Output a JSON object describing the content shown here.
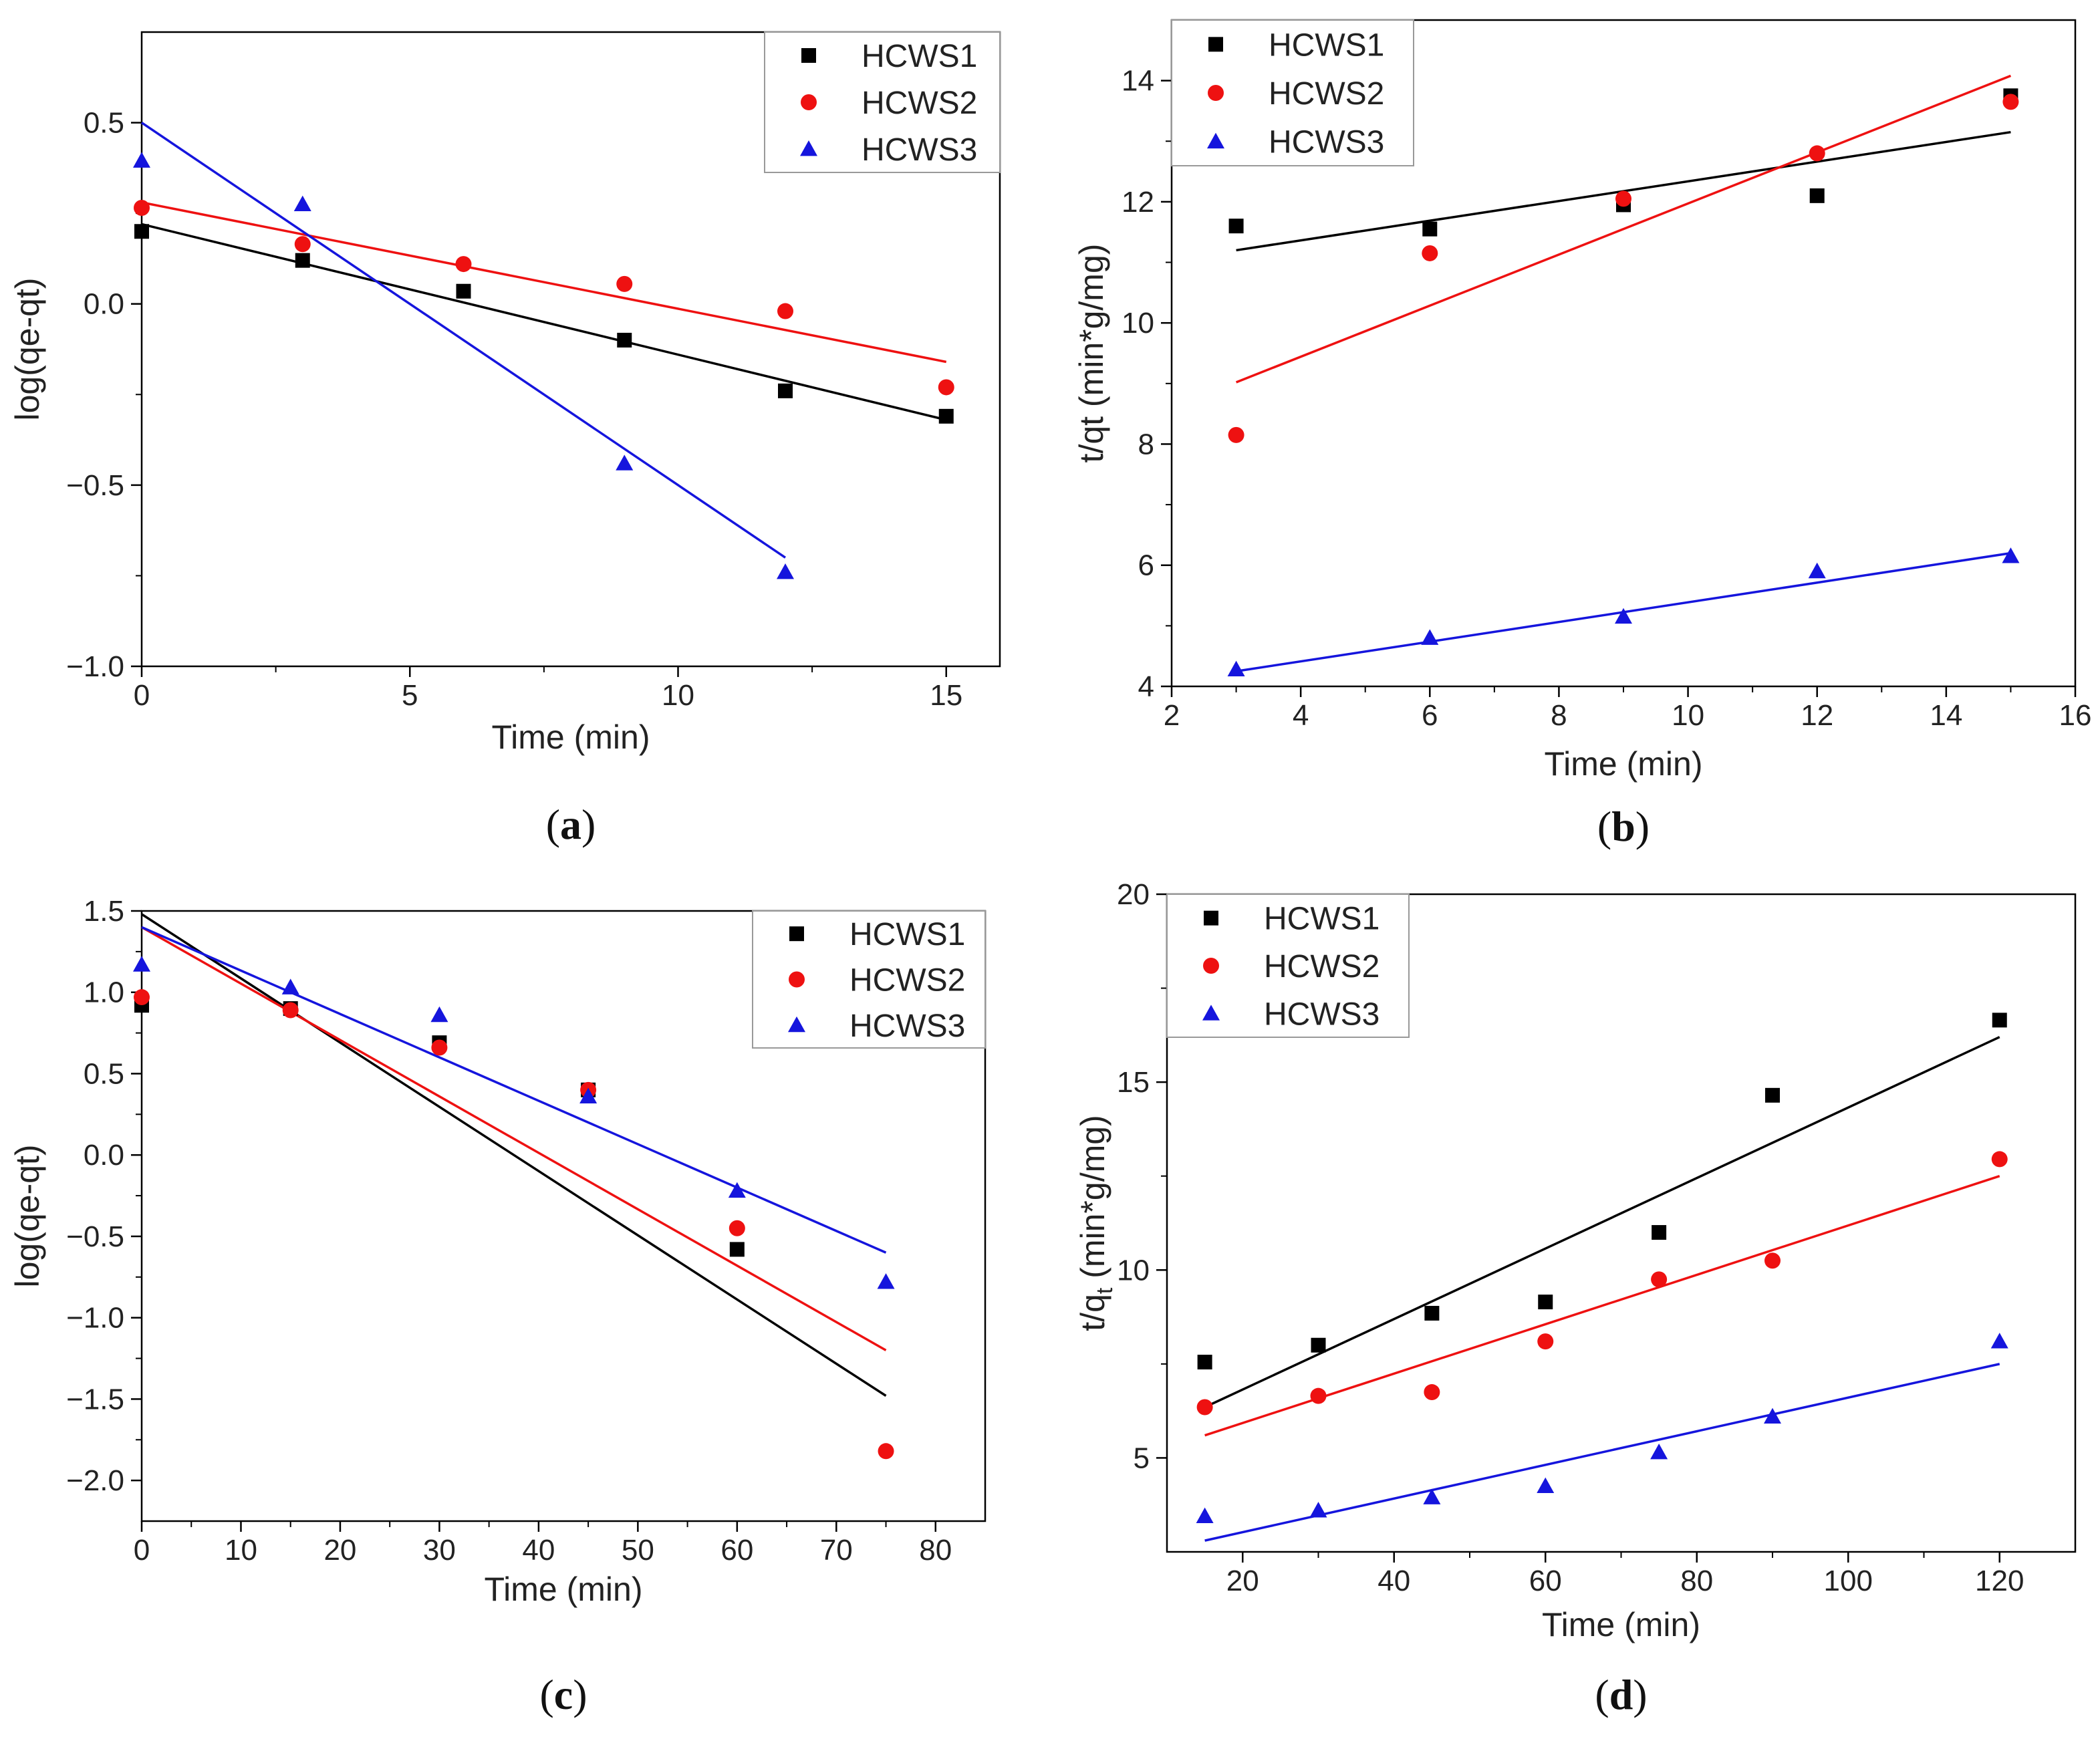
{
  "colors": {
    "HCWS1": "#000000",
    "HCWS2": "#ee1111",
    "HCWS3": "#1515dd",
    "axis": "#000000"
  },
  "legend_markers": [
    "square",
    "circle",
    "triangle"
  ],
  "chart_data": [
    {
      "id": "a",
      "caption": "a",
      "type": "scatter",
      "title": "",
      "xlabel": "Time (min)",
      "ylabel": "log(qe-qt)",
      "xlim": [
        0,
        16
      ],
      "ylim": [
        -1.0,
        0.75
      ],
      "xticks": [
        0,
        5,
        10,
        15
      ],
      "xtick_labels": [
        "0",
        "5",
        "10",
        "15"
      ],
      "yticks": [
        -1.0,
        -0.5,
        0.0,
        0.5
      ],
      "ytick_labels": [
        "−1.0",
        "−0.5",
        "0.0",
        "0.5"
      ],
      "legend_position": "top-right",
      "grid": false,
      "series": [
        {
          "name": "HCWS1",
          "x": [
            0,
            3,
            6,
            9,
            12,
            15
          ],
          "y": [
            0.2,
            0.12,
            0.035,
            -0.1,
            -0.24,
            -0.31
          ],
          "fit": [
            [
              0,
              0.22
            ],
            [
              15,
              -0.32
            ]
          ]
        },
        {
          "name": "HCWS2",
          "x": [
            0,
            3,
            6,
            9,
            12,
            15
          ],
          "y": [
            0.265,
            0.165,
            0.11,
            0.055,
            -0.02,
            -0.23
          ],
          "fit": [
            [
              0,
              0.28
            ],
            [
              15,
              -0.16
            ]
          ]
        },
        {
          "name": "HCWS3",
          "x": [
            0,
            3,
            9,
            12
          ],
          "y": [
            0.395,
            0.275,
            -0.44,
            -0.74
          ],
          "fit": [
            [
              0,
              0.5
            ],
            [
              12,
              -0.7
            ]
          ]
        }
      ]
    },
    {
      "id": "b",
      "caption": "b",
      "type": "scatter",
      "title": "",
      "xlabel": "Time (min)",
      "ylabel": "t/qt (min*g/mg)",
      "xlim": [
        2,
        16
      ],
      "ylim": [
        4,
        15
      ],
      "xticks": [
        2,
        4,
        6,
        8,
        10,
        12,
        14,
        16
      ],
      "xtick_labels": [
        "2",
        "4",
        "6",
        "8",
        "10",
        "12",
        "14",
        "16"
      ],
      "yticks": [
        4,
        6,
        8,
        10,
        12,
        14
      ],
      "ytick_labels": [
        "4",
        "6",
        "8",
        "10",
        "12",
        "14"
      ],
      "legend_position": "top-left",
      "grid": false,
      "series": [
        {
          "name": "HCWS1",
          "x": [
            3,
            6,
            9,
            12,
            15
          ],
          "y": [
            11.6,
            11.55,
            11.95,
            12.1,
            13.75
          ],
          "fit": [
            [
              3,
              11.2
            ],
            [
              15,
              13.15
            ]
          ]
        },
        {
          "name": "HCWS2",
          "x": [
            3,
            6,
            9,
            12,
            15
          ],
          "y": [
            8.15,
            11.15,
            12.05,
            12.8,
            13.65
          ],
          "fit": [
            [
              3,
              9.02
            ],
            [
              15,
              14.08
            ]
          ]
        },
        {
          "name": "HCWS3",
          "x": [
            3,
            6,
            9,
            12,
            15
          ],
          "y": [
            4.28,
            4.8,
            5.15,
            5.9,
            6.15
          ],
          "fit": [
            [
              3,
              4.25
            ],
            [
              15,
              6.2
            ]
          ]
        }
      ]
    },
    {
      "id": "c",
      "caption": "c",
      "type": "scatter",
      "title": "",
      "xlabel": "Time (min)",
      "ylabel": "log(qe-qt)",
      "xlim": [
        0,
        85
      ],
      "ylim": [
        -2.25,
        1.5
      ],
      "xticks": [
        0,
        10,
        20,
        30,
        40,
        50,
        60,
        70,
        80
      ],
      "xtick_labels": [
        "0",
        "10",
        "20",
        "30",
        "40",
        "50",
        "60",
        "70",
        "80"
      ],
      "yticks": [
        -2.0,
        -1.5,
        -1.0,
        -0.5,
        0.0,
        0.5,
        1.0,
        1.5
      ],
      "ytick_labels": [
        "−2.0",
        "−1.5",
        "−1.0",
        "−0.5",
        "0.0",
        "0.5",
        "1.0",
        "1.5"
      ],
      "legend_position": "top-right",
      "grid": false,
      "series": [
        {
          "name": "HCWS1",
          "x": [
            0,
            15,
            30,
            45,
            60
          ],
          "y": [
            0.92,
            0.9,
            0.69,
            0.4,
            -0.58
          ],
          "fit": [
            [
              0,
              1.48
            ],
            [
              75,
              -1.48
            ]
          ]
        },
        {
          "name": "HCWS2",
          "x": [
            0,
            15,
            30,
            45,
            60,
            75
          ],
          "y": [
            0.97,
            0.89,
            0.66,
            0.4,
            -0.45,
            -1.82
          ],
          "fit": [
            [
              0,
              1.4
            ],
            [
              75,
              -1.2
            ]
          ]
        },
        {
          "name": "HCWS3",
          "x": [
            0,
            15,
            30,
            45,
            60,
            75
          ],
          "y": [
            1.17,
            1.03,
            0.86,
            0.36,
            -0.22,
            -0.78
          ],
          "fit": [
            [
              0,
              1.4
            ],
            [
              75,
              -0.6
            ]
          ]
        }
      ]
    },
    {
      "id": "d",
      "caption": "d",
      "type": "scatter",
      "title": "",
      "xlabel": "Time (min)",
      "ylabel": "t/q",
      "ylabel_sub": "t",
      "ylabel_unit": " (min*g/mg)",
      "xlim": [
        10,
        130
      ],
      "ylim": [
        2.5,
        20
      ],
      "xticks": [
        20,
        40,
        60,
        80,
        100,
        120
      ],
      "xtick_labels": [
        "20",
        "40",
        "60",
        "80",
        "100",
        "120"
      ],
      "yticks": [
        5,
        10,
        15,
        20
      ],
      "ytick_labels": [
        "5",
        "10",
        "15",
        "20"
      ],
      "legend_position": "top-left",
      "grid": false,
      "series": [
        {
          "name": "HCWS1",
          "x": [
            15,
            30,
            45,
            60,
            75,
            90,
            120
          ],
          "y": [
            7.55,
            8.0,
            8.85,
            9.15,
            11.0,
            14.65,
            16.65
          ],
          "fit": [
            [
              15,
              6.35
            ],
            [
              120,
              16.2
            ]
          ]
        },
        {
          "name": "HCWS2",
          "x": [
            15,
            30,
            45,
            60,
            75,
            90,
            120
          ],
          "y": [
            6.35,
            6.65,
            6.75,
            8.1,
            9.75,
            10.25,
            12.95
          ],
          "fit": [
            [
              15,
              5.6
            ],
            [
              120,
              12.5
            ]
          ]
        },
        {
          "name": "HCWS3",
          "x": [
            15,
            30,
            45,
            60,
            75,
            90,
            120
          ],
          "y": [
            3.45,
            3.6,
            3.95,
            4.25,
            5.15,
            6.1,
            8.1
          ],
          "fit": [
            [
              15,
              2.8
            ],
            [
              120,
              7.5
            ]
          ]
        }
      ]
    }
  ]
}
